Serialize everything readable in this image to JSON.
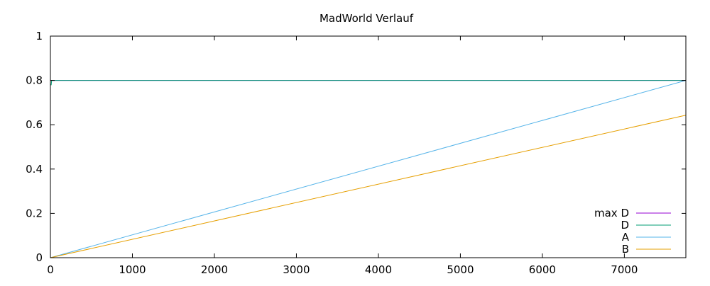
{
  "chart_data": {
    "type": "line",
    "title": "MadWorld Verlauf",
    "xlabel": "",
    "ylabel": "",
    "xlim": [
      0,
      7750
    ],
    "ylim": [
      0,
      1
    ],
    "xticks": [
      0,
      1000,
      2000,
      3000,
      4000,
      5000,
      6000,
      7000
    ],
    "xtick_labels": [
      "0",
      "1000",
      "2000",
      "3000",
      "4000",
      "5000",
      "6000",
      "7000"
    ],
    "yticks": [
      0,
      0.2,
      0.4,
      0.6,
      0.8,
      1
    ],
    "ytick_labels": [
      "0",
      "0.2",
      "0.4",
      "0.6",
      "0.8",
      "1"
    ],
    "grid": false,
    "legend_position": "bottom-right",
    "series": [
      {
        "name": "max D",
        "color": "#9400d3",
        "points": [
          [
            0,
            0.8
          ],
          [
            7750,
            0.8
          ]
        ]
      },
      {
        "name": "D",
        "color": "#009e73",
        "points": [
          [
            0,
            0.78
          ],
          [
            10,
            0.78
          ],
          [
            15,
            0.8
          ],
          [
            7750,
            0.8
          ]
        ]
      },
      {
        "name": "A",
        "color": "#56b4e9",
        "points": [
          [
            0,
            0
          ],
          [
            7750,
            0.8
          ]
        ]
      },
      {
        "name": "B",
        "color": "#e69f00",
        "points": [
          [
            0,
            0
          ],
          [
            7750,
            0.643
          ]
        ]
      }
    ]
  }
}
